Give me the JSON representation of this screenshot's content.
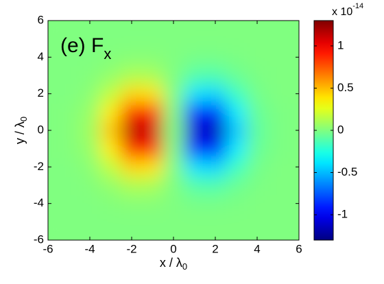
{
  "chart_data": {
    "type": "heatmap",
    "title": "(e) F",
    "title_sub": "x",
    "xlabel": "x / λ",
    "xlabel_sub": "0",
    "ylabel": "y / λ",
    "ylabel_sub": "0",
    "colorbar_multiplier": "x 10",
    "colorbar_exponent": "-14",
    "colormap": "jet",
    "clim": [
      -1.3,
      1.3
    ],
    "colorbar_ticks": [
      -1,
      -0.5,
      0,
      0.5,
      1
    ],
    "x": [
      -6,
      -5,
      -4,
      -3,
      -2,
      -1,
      0,
      1,
      2,
      3,
      4,
      5,
      6
    ],
    "y": [
      -6,
      -5,
      -4,
      -3,
      -2,
      -1,
      0,
      1,
      2,
      3,
      4,
      5,
      6
    ],
    "z": [
      [
        0,
        0,
        0,
        0,
        0,
        0,
        0,
        0,
        0,
        0,
        0,
        0,
        0
      ],
      [
        0,
        0,
        0,
        0,
        0,
        0,
        0,
        0,
        0,
        0,
        0,
        0,
        0
      ],
      [
        0,
        0,
        0,
        0.01,
        0.02,
        0.02,
        0,
        -0.02,
        -0.02,
        -0.01,
        0,
        0,
        0
      ],
      [
        0,
        0,
        0.01,
        0.05,
        0.12,
        0.11,
        0,
        -0.11,
        -0.12,
        -0.05,
        -0.01,
        0,
        0
      ],
      [
        0,
        0,
        0.03,
        0.17,
        0.43,
        0.4,
        0,
        -0.4,
        -0.43,
        -0.17,
        -0.03,
        0,
        0
      ],
      [
        0,
        0.01,
        0.06,
        0.37,
        0.9,
        0.85,
        0,
        -0.85,
        -0.9,
        -0.37,
        -0.06,
        -0.01,
        0
      ],
      [
        0,
        0.01,
        0.08,
        0.47,
        1.16,
        1.09,
        0,
        -1.09,
        -1.16,
        -0.47,
        -0.08,
        -0.01,
        0
      ],
      [
        0,
        0.01,
        0.06,
        0.37,
        0.9,
        0.85,
        0,
        -0.85,
        -0.9,
        -0.37,
        -0.06,
        -0.01,
        0
      ],
      [
        0,
        0,
        0.03,
        0.17,
        0.43,
        0.4,
        0,
        -0.4,
        -0.43,
        -0.17,
        -0.03,
        0,
        0
      ],
      [
        0,
        0,
        0.01,
        0.05,
        0.12,
        0.11,
        0,
        -0.11,
        -0.12,
        -0.05,
        -0.01,
        0,
        0
      ],
      [
        0,
        0,
        0,
        0.01,
        0.02,
        0.02,
        0,
        -0.02,
        -0.02,
        -0.01,
        0,
        0,
        0
      ],
      [
        0,
        0,
        0,
        0,
        0,
        0,
        0,
        0,
        0,
        0,
        0,
        0,
        0
      ],
      [
        0,
        0,
        0,
        0,
        0,
        0,
        0,
        0,
        0,
        0,
        0,
        0,
        0
      ]
    ],
    "xlim": [
      -6,
      6
    ],
    "xticks": [
      -6,
      -4,
      -2,
      0,
      2,
      4,
      6
    ],
    "ylim": [
      -6,
      6
    ],
    "yticks": [
      -6,
      -4,
      -2,
      0,
      2,
      4,
      6
    ]
  }
}
